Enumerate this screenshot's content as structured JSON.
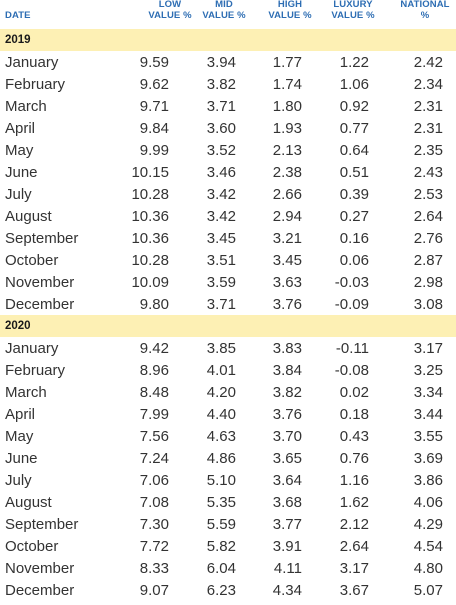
{
  "headers": {
    "date": "DATE",
    "low": "LOW\nVALUE %",
    "mid": "MID\nVALUE %",
    "high": "HIGH\nVALUE %",
    "luxury": "LUXURY\nVALUE %",
    "national": "NATIONAL\n%"
  },
  "groups": [
    {
      "year": "2019",
      "rows": [
        {
          "month": "January",
          "low": "9.59",
          "mid": "3.94",
          "high": "1.77",
          "luxury": "1.22",
          "national": "2.42"
        },
        {
          "month": "February",
          "low": "9.62",
          "mid": "3.82",
          "high": "1.74",
          "luxury": "1.06",
          "national": "2.34"
        },
        {
          "month": "March",
          "low": "9.71",
          "mid": "3.71",
          "high": "1.80",
          "luxury": "0.92",
          "national": "2.31"
        },
        {
          "month": "April",
          "low": "9.84",
          "mid": "3.60",
          "high": "1.93",
          "luxury": "0.77",
          "national": "2.31"
        },
        {
          "month": "May",
          "low": "9.99",
          "mid": "3.52",
          "high": "2.13",
          "luxury": "0.64",
          "national": "2.35"
        },
        {
          "month": "June",
          "low": "10.15",
          "mid": "3.46",
          "high": "2.38",
          "luxury": "0.51",
          "national": "2.43"
        },
        {
          "month": "July",
          "low": "10.28",
          "mid": "3.42",
          "high": "2.66",
          "luxury": "0.39",
          "national": "2.53"
        },
        {
          "month": "August",
          "low": "10.36",
          "mid": "3.42",
          "high": "2.94",
          "luxury": "0.27",
          "national": "2.64"
        },
        {
          "month": "September",
          "low": "10.36",
          "mid": "3.45",
          "high": "3.21",
          "luxury": "0.16",
          "national": "2.76"
        },
        {
          "month": "October",
          "low": "10.28",
          "mid": "3.51",
          "high": "3.45",
          "luxury": "0.06",
          "national": "2.87"
        },
        {
          "month": "November",
          "low": "10.09",
          "mid": "3.59",
          "high": "3.63",
          "luxury": "-0.03",
          "national": "2.98"
        },
        {
          "month": "December",
          "low": "9.80",
          "mid": "3.71",
          "high": "3.76",
          "luxury": "-0.09",
          "national": "3.08"
        }
      ]
    },
    {
      "year": "2020",
      "rows": [
        {
          "month": "January",
          "low": "9.42",
          "mid": "3.85",
          "high": "3.83",
          "luxury": "-0.11",
          "national": "3.17"
        },
        {
          "month": "February",
          "low": "8.96",
          "mid": "4.01",
          "high": "3.84",
          "luxury": "-0.08",
          "national": "3.25"
        },
        {
          "month": "March",
          "low": "8.48",
          "mid": "4.20",
          "high": "3.82",
          "luxury": "0.02",
          "national": "3.34"
        },
        {
          "month": "April",
          "low": "7.99",
          "mid": "4.40",
          "high": "3.76",
          "luxury": "0.18",
          "national": "3.44"
        },
        {
          "month": "May",
          "low": "7.56",
          "mid": "4.63",
          "high": "3.70",
          "luxury": "0.43",
          "national": "3.55"
        },
        {
          "month": "June",
          "low": "7.24",
          "mid": "4.86",
          "high": "3.65",
          "luxury": "0.76",
          "national": "3.69"
        },
        {
          "month": "July",
          "low": "7.06",
          "mid": "5.10",
          "high": "3.64",
          "luxury": "1.16",
          "national": "3.86"
        },
        {
          "month": "August",
          "low": "7.08",
          "mid": "5.35",
          "high": "3.68",
          "luxury": "1.62",
          "national": "4.06"
        },
        {
          "month": "September",
          "low": "7.30",
          "mid": "5.59",
          "high": "3.77",
          "luxury": "2.12",
          "national": "4.29"
        },
        {
          "month": "October",
          "low": "7.72",
          "mid": "5.82",
          "high": "3.91",
          "luxury": "2.64",
          "national": "4.54"
        },
        {
          "month": "November",
          "low": "8.33",
          "mid": "6.04",
          "high": "4.11",
          "luxury": "3.17",
          "national": "4.80"
        },
        {
          "month": "December",
          "low": "9.07",
          "mid": "6.23",
          "high": "4.34",
          "luxury": "3.67",
          "national": "5.07"
        }
      ]
    }
  ],
  "colors": {
    "header_text": "#2d6db3",
    "year_band": "#fdf0b4",
    "body_text": "#333333"
  }
}
